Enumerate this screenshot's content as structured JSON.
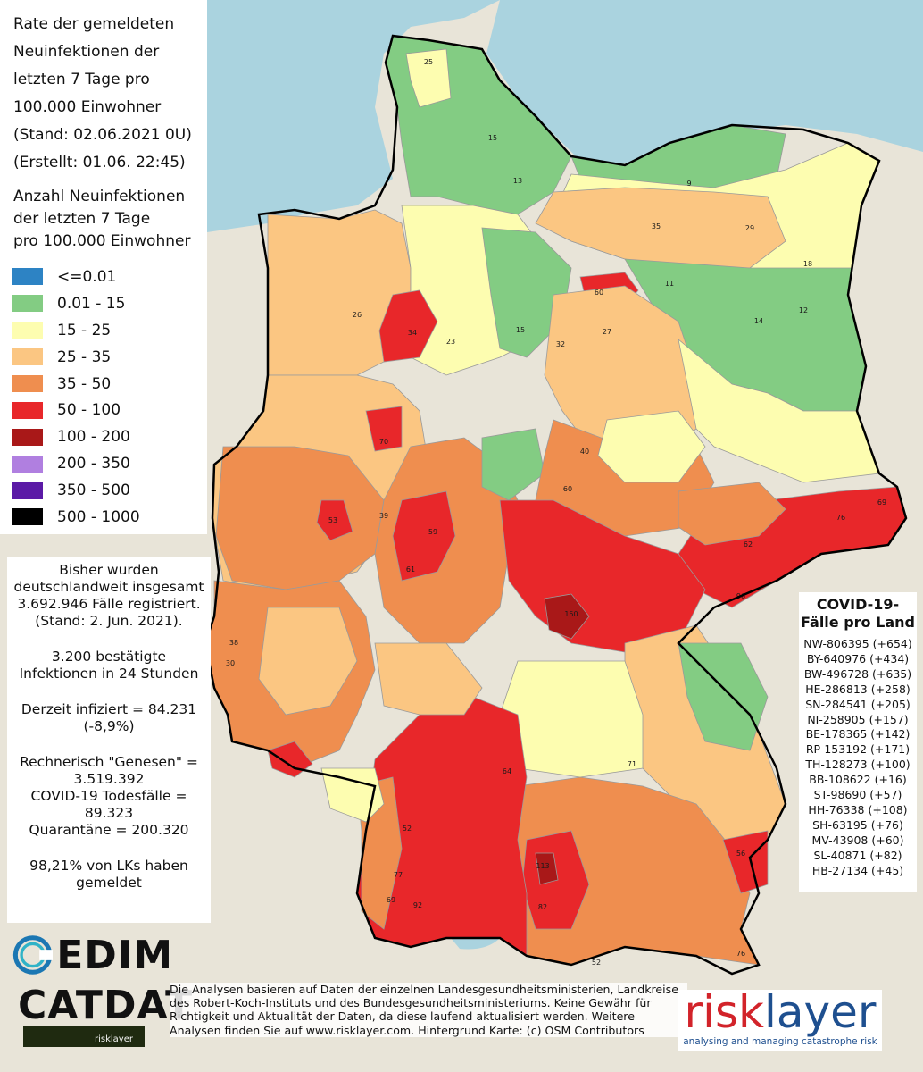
{
  "header": {
    "title": "Rate der gemeldeten\nNeuinfektionen der\nletzten 7 Tage pro\n100.000 Einwohner\n(Stand: 02.06.2021 0U)\n(Erstellt: 01.06. 22:45)"
  },
  "legend": {
    "title": "Anzahl Neuinfektionen\nder letzten 7 Tage\npro 100.000 Einwohner",
    "items": [
      {
        "label": "<=0.01",
        "color": "#2d83c4"
      },
      {
        "label": "0.01 - 15",
        "color": "#83cc83"
      },
      {
        "label": "15 - 25",
        "color": "#fdfdb0"
      },
      {
        "label": "25 - 35",
        "color": "#fbc682"
      },
      {
        "label": "35 - 50",
        "color": "#ef8e4f"
      },
      {
        "label": "50 - 100",
        "color": "#e8272a"
      },
      {
        "label": "100 - 200",
        "color": "#a91818"
      },
      {
        "label": "200 - 350",
        "color": "#b07fe0"
      },
      {
        "label": "350 - 500",
        "color": "#5b1aa6"
      },
      {
        "label": "500 - 1000",
        "color": "#000000"
      }
    ]
  },
  "stats": {
    "total": "Bisher wurden\ndeutschlandweit insgesamt\n3.692.946 Fälle registriert.\n(Stand: 2. Jun. 2021).",
    "confirmed_24h": "3.200 bestätigte\nInfektionen in 24 Stunden",
    "infected": "Derzeit infiziert = 84.231\n(-8,9%)",
    "recovered_deaths": "Rechnerisch \"Genesen\" =\n3.519.392\nCOVID-19 Todesfälle =\n89.323\nQuarantäne = 200.320",
    "reporting": "98,21% von LKs haben\ngemeldet"
  },
  "cases_by_state": {
    "title": "COVID-19-\nFälle pro Land",
    "rows": [
      "NW-806395 (+654)",
      "BY-640976 (+434)",
      "BW-496728 (+635)",
      "HE-286813 (+258)",
      "SN-284541 (+205)",
      "NI-258905 (+157)",
      "BE-178365 (+142)",
      "RP-153192 (+171)",
      "TH-128273 (+100)",
      "BB-108622 (+16)",
      "ST-98690 (+57)",
      "HH-76338 (+108)",
      "SH-63195 (+76)",
      "MV-43908 (+60)",
      "SL-40871 (+82)",
      "HB-27134 (+45)"
    ]
  },
  "footer": {
    "text": "Die Analysen basieren auf Daten der einzelnen Landesgesundheitsministerien, Landkreise, des Robert-Koch-Instituts und des Bundesgesundheitsministeriums. Keine Gewähr für Richtigkeit und Aktualität der Daten, da diese laufend aktualisiert werden. Weitere Analysen finden Sie auf www.risklayer.com. Hintergrund Karte: (c) OSM Contributors"
  },
  "logos": {
    "edim": "EDIM",
    "catdat": "CATDAT",
    "catdat_sub": "risklayer",
    "risklayer_a": "risk",
    "risklayer_b": "layer",
    "risklayer_tag": "analysing and managing catastrophe risk"
  },
  "map": {
    "region_colors": {
      "low": "#83cc83",
      "yellow": "#fdfdb0",
      "light_orange": "#fbc682",
      "orange": "#ef8e4f",
      "red": "#e8272a",
      "dark_red": "#a91818",
      "sea": "#aad3df",
      "neighbor": "#e8e4d8"
    },
    "labels": [
      {
        "name": "label-sh-25",
        "text": "25"
      },
      {
        "name": "label-sh-15",
        "text": "15"
      },
      {
        "name": "label-sh-13",
        "text": "13"
      },
      {
        "name": "label-mv-9",
        "text": "9"
      },
      {
        "name": "label-mv-29",
        "text": "29"
      },
      {
        "name": "label-mv-35",
        "text": "35"
      },
      {
        "name": "label-bb-18",
        "text": "18"
      },
      {
        "name": "label-bb-11",
        "text": "11"
      },
      {
        "name": "label-bb-14",
        "text": "14"
      },
      {
        "name": "label-bb-12",
        "text": "12"
      },
      {
        "name": "label-ni-60",
        "text": "60"
      },
      {
        "name": "label-ni-34",
        "text": "34"
      },
      {
        "name": "label-ni-26",
        "text": "26"
      },
      {
        "name": "label-ni-23",
        "text": "23"
      },
      {
        "name": "label-ni-15",
        "text": "15"
      },
      {
        "name": "label-st-27",
        "text": "27"
      },
      {
        "name": "label-st-32",
        "text": "32"
      },
      {
        "name": "label-nrw-70",
        "text": "70"
      },
      {
        "name": "label-nrw-53",
        "text": "53"
      },
      {
        "name": "label-nrw-39",
        "text": "39"
      },
      {
        "name": "label-he-59",
        "text": "59"
      },
      {
        "name": "label-he-61",
        "text": "61"
      },
      {
        "name": "label-th-60",
        "text": "60"
      },
      {
        "name": "label-th-40",
        "text": "40"
      },
      {
        "name": "label-sn-76",
        "text": "76"
      },
      {
        "name": "label-sn-69",
        "text": "69"
      },
      {
        "name": "label-sn-62",
        "text": "62"
      },
      {
        "name": "label-sn-96",
        "text": "96"
      },
      {
        "name": "label-by-150",
        "text": "150"
      },
      {
        "name": "label-by-113",
        "text": "113"
      },
      {
        "name": "label-by-71",
        "text": "71"
      },
      {
        "name": "label-by-56",
        "text": "56"
      },
      {
        "name": "label-by-64",
        "text": "64"
      },
      {
        "name": "label-by-82",
        "text": "82"
      },
      {
        "name": "label-bw-92",
        "text": "92"
      },
      {
        "name": "label-bw-77",
        "text": "77"
      },
      {
        "name": "label-bw-69",
        "text": "69"
      },
      {
        "name": "label-bw-52",
        "text": "52"
      },
      {
        "name": "label-rp-38",
        "text": "38"
      },
      {
        "name": "label-rp-30",
        "text": "30"
      },
      {
        "name": "label-by-52",
        "text": "52"
      },
      {
        "name": "label-by-76",
        "text": "76"
      }
    ]
  }
}
